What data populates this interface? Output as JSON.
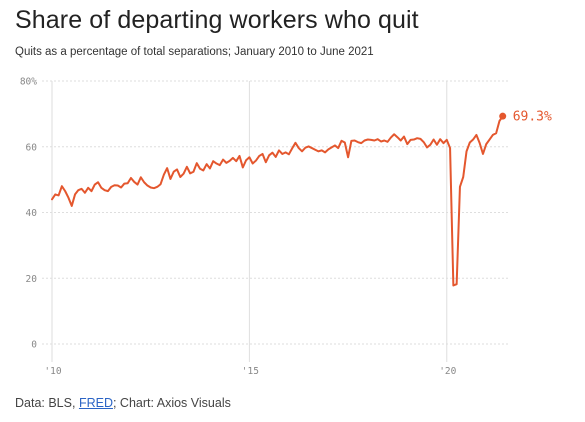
{
  "title": "Share of departing workers who quit",
  "subtitle": "Quits as a percentage of total separations; January 2010 to June 2021",
  "source": {
    "prefix": "Data: BLS, ",
    "link_text": "FRED",
    "suffix": "; Chart: Axios Visuals"
  },
  "colors": {
    "line": "#e4572e",
    "grid": "#dedede",
    "tick_text": "#888888"
  },
  "chart_data": {
    "type": "line",
    "title": "Share of departing workers who quit",
    "subtitle": "Quits as a percentage of total separations; January 2010 to June 2021",
    "xlabel": "",
    "ylabel": "",
    "x_start": "2010-01",
    "x_end": "2021-06",
    "frequency": "monthly",
    "xlim": [
      2010,
      2021.5
    ],
    "ylim": [
      0,
      80
    ],
    "y_ticks": [
      0,
      20,
      40,
      60,
      80
    ],
    "y_tick_labels": [
      "0",
      "20",
      "40",
      "60",
      "80%"
    ],
    "x_ticks": [
      2010,
      2015,
      2020
    ],
    "x_tick_labels": [
      "'10",
      "'15",
      "'20"
    ],
    "grid": "vertical lines at x ticks, horizontal lines at y ticks",
    "legend": "none",
    "end_label": "69.3%",
    "series": [
      {
        "values": [
          44,
          45.5,
          45.2,
          48,
          46.5,
          44.5,
          42,
          45.5,
          46.8,
          47.2,
          46,
          47.5,
          46.5,
          48.5,
          49.2,
          47.5,
          46.8,
          46.5,
          47.8,
          48.3,
          48.2,
          47.6,
          48.8,
          48.9,
          50.5,
          49.3,
          48.5,
          50.7,
          49.2,
          48.2,
          47.6,
          47.4,
          47.8,
          48.6,
          51.5,
          53.5,
          50.2,
          52.4,
          53.1,
          50.8,
          51.8,
          53.9,
          51.9,
          52.4,
          55,
          53.3,
          52.8,
          54.7,
          53.4,
          55.6,
          54.9,
          54.4,
          56.1,
          55.1,
          55.7,
          56.6,
          55.6,
          57.2,
          53.7,
          55.9,
          56.8,
          54.9,
          55.8,
          57.2,
          57.8,
          55.3,
          57.4,
          58.2,
          56.9,
          58.9,
          57.8,
          58.3,
          57.7,
          59.5,
          61.2,
          59.6,
          58.6,
          59.7,
          60.1,
          59.6,
          59.1,
          58.6,
          58.9,
          58.3,
          59.2,
          59.8,
          60.4,
          59.6,
          61.8,
          61.3,
          56.8,
          61.8,
          61.9,
          61.4,
          61.1,
          61.9,
          62.2,
          62.1,
          61.9,
          62.3,
          61.6,
          61.9,
          61.5,
          62.8,
          63.8,
          62.9,
          61.9,
          63.1,
          60.8,
          62.1,
          62.2,
          62.6,
          62.4,
          61.4,
          59.8,
          60.6,
          62.2,
          60.6,
          62.3,
          61.1,
          62.1,
          59.6,
          17.8,
          18.2,
          47.8,
          50.8,
          58.6,
          61.3,
          62.2,
          63.6,
          61.1,
          57.8,
          60.8,
          62.2,
          63.6,
          64.1,
          67.8,
          69.3
        ]
      }
    ]
  }
}
